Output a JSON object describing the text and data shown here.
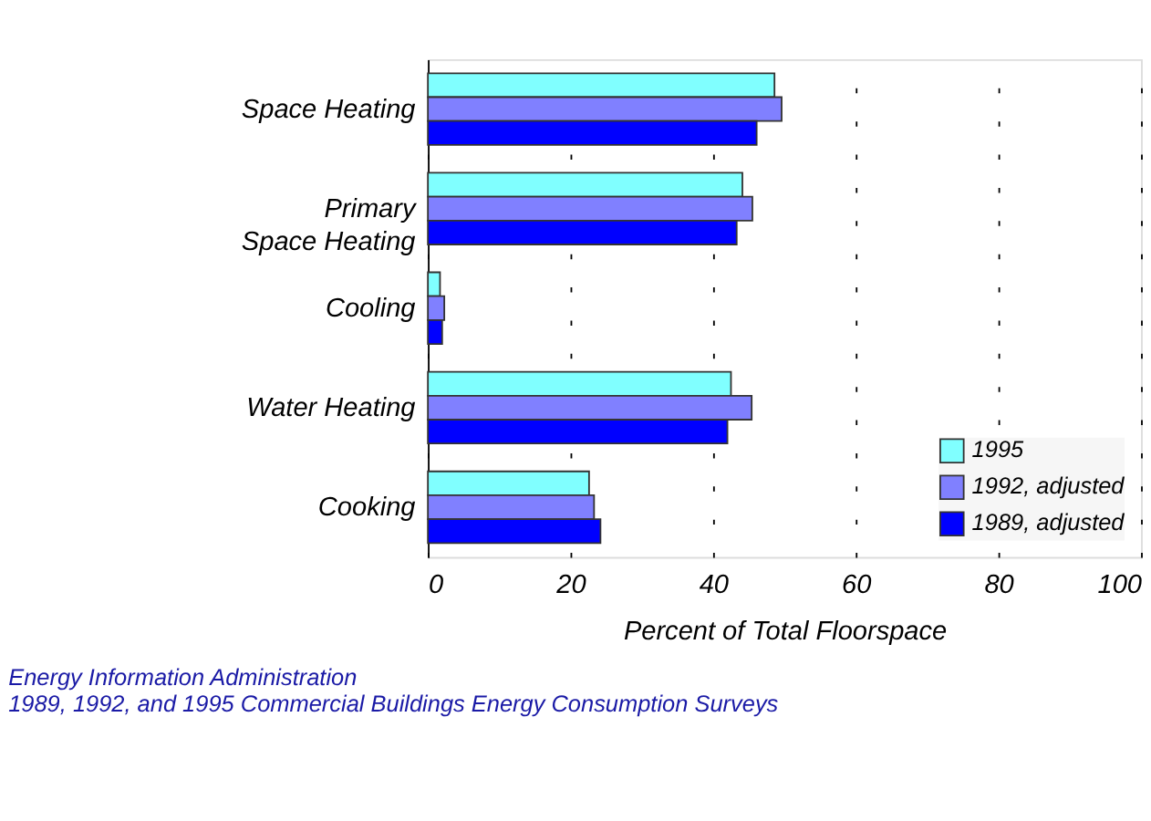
{
  "chart_data": {
    "type": "bar",
    "orientation": "horizontal",
    "categories": [
      "Space Heating",
      "Primary\nSpace Heating",
      "Cooling",
      "Water Heating",
      "Cooking"
    ],
    "series": [
      {
        "name": "1995",
        "color": "#80ffff",
        "values": [
          48.6,
          44.1,
          1.7,
          42.5,
          22.6
        ]
      },
      {
        "name": "1992, adjusted",
        "color": "#8080ff",
        "values": [
          49.6,
          45.5,
          2.3,
          45.4,
          23.3
        ]
      },
      {
        "name": "1989, adjusted",
        "color": "#0000ff",
        "values": [
          46.1,
          43.3,
          2.0,
          42.0,
          24.2
        ]
      }
    ],
    "xlabel": "Percent of Total Floorspace",
    "xlim": [
      0,
      100
    ],
    "xticks": [
      0,
      20,
      40,
      60,
      80,
      100
    ],
    "grid": "x",
    "legend": "bottom right",
    "annotations": [
      "Energy Information Administration",
      "1989, 1992, and 1995 Commercial Buildings Energy Consumption Surveys"
    ]
  }
}
